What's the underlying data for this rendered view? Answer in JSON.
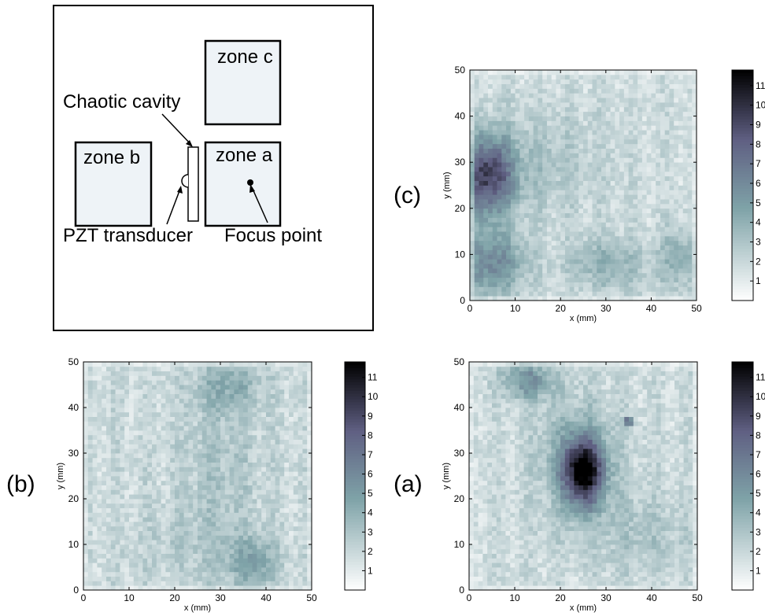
{
  "schematic": {
    "zone_c": "zone c",
    "zone_b": "zone b",
    "zone_a": "zone a",
    "chaotic_cavity": "Chaotic cavity",
    "pzt_transducer": "PZT transducer",
    "focus_point": "Focus point"
  },
  "colors": {
    "zone_fill": "#eef3f7",
    "colormap_low": "#ffffff",
    "colormap_mid": "#7fa3a8",
    "colormap_high": "#000000"
  },
  "chart_data": [
    {
      "type": "heatmap",
      "label": "(c)",
      "xlabel": "x (mm)",
      "ylabel": "y (mm)",
      "xlim": [
        0,
        50
      ],
      "ylim": [
        0,
        50
      ],
      "xticks": [
        0,
        10,
        20,
        30,
        40,
        50
      ],
      "yticks": [
        0,
        10,
        20,
        30,
        40,
        50
      ],
      "colorbar": {
        "min": 0,
        "max": 11.8,
        "ticks": [
          1,
          2,
          3,
          4,
          5,
          6,
          7,
          8,
          9,
          10,
          11
        ]
      },
      "hotspots": [
        {
          "x": 4,
          "y": 27,
          "value": 9.5,
          "sx": 4,
          "sy": 6
        },
        {
          "x": 5,
          "y": 8,
          "value": 6.5,
          "sx": 5,
          "sy": 5
        },
        {
          "x": 30,
          "y": 8,
          "value": 4.5,
          "sx": 6,
          "sy": 4
        },
        {
          "x": 46,
          "y": 9,
          "value": 4.5,
          "sx": 3,
          "sy": 5
        },
        {
          "x": 15,
          "y": 30,
          "value": 3.5,
          "sx": 10,
          "sy": 8
        }
      ],
      "baseline": 2.2
    },
    {
      "type": "heatmap",
      "label": "(b)",
      "xlabel": "x (mm)",
      "ylabel": "y (mm)",
      "xlim": [
        0,
        50
      ],
      "ylim": [
        0,
        50
      ],
      "xticks": [
        0,
        10,
        20,
        30,
        40,
        50
      ],
      "yticks": [
        0,
        10,
        20,
        30,
        40,
        50
      ],
      "colorbar": {
        "min": 0,
        "max": 11.8,
        "ticks": [
          1,
          2,
          3,
          4,
          5,
          6,
          7,
          8,
          9,
          10,
          11
        ]
      },
      "hotspots": [
        {
          "x": 37,
          "y": 6,
          "value": 5,
          "sx": 4,
          "sy": 4
        },
        {
          "x": 32,
          "y": 45,
          "value": 4.5,
          "sx": 5,
          "sy": 4
        },
        {
          "x": 30,
          "y": 25,
          "value": 3.5,
          "sx": 6,
          "sy": 15
        },
        {
          "x": 22,
          "y": 10,
          "value": 3,
          "sx": 8,
          "sy": 6
        }
      ],
      "baseline": 2.4
    },
    {
      "type": "heatmap",
      "label": "(a)",
      "xlabel": "x (mm)",
      "ylabel": "y (mm)",
      "xlim": [
        0,
        50
      ],
      "ylim": [
        0,
        50
      ],
      "xticks": [
        0,
        10,
        20,
        30,
        40,
        50
      ],
      "yticks": [
        0,
        10,
        20,
        30,
        40,
        50
      ],
      "colorbar": {
        "min": 0,
        "max": 11.8,
        "ticks": [
          1,
          2,
          3,
          4,
          5,
          6,
          7,
          8,
          9,
          10,
          11
        ]
      },
      "hotspots": [
        {
          "x": 25,
          "y": 26,
          "value": 11,
          "sx": 3,
          "sy": 5
        },
        {
          "x": 24,
          "y": 28,
          "value": 5,
          "sx": 6,
          "sy": 9
        },
        {
          "x": 13,
          "y": 46,
          "value": 6,
          "sx": 4,
          "sy": 3
        },
        {
          "x": 35,
          "y": 37,
          "value": 10,
          "sx": 0.6,
          "sy": 0.6
        },
        {
          "x": 38,
          "y": 12,
          "value": 3.5,
          "sx": 8,
          "sy": 6
        }
      ],
      "baseline": 2.3
    }
  ]
}
